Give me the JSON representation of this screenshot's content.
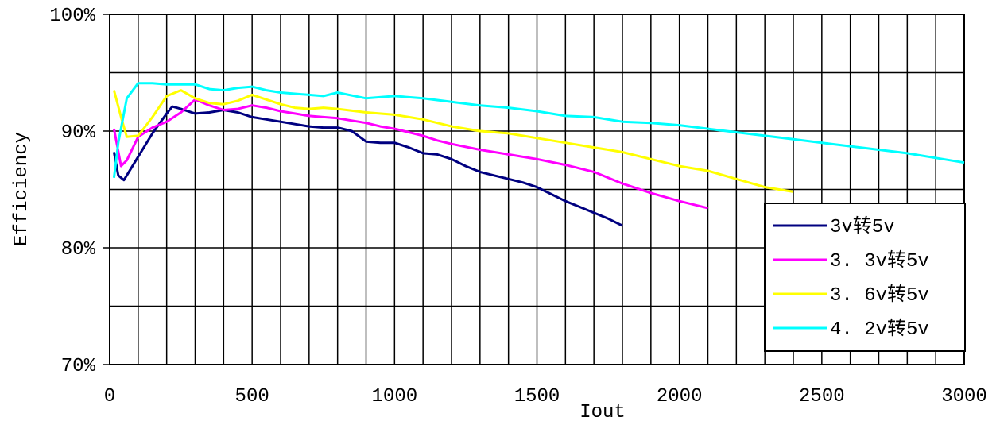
{
  "chart_data": {
    "type": "line",
    "title": "",
    "xlabel": "Iout",
    "ylabel": "Efficiency",
    "xlim": [
      0,
      3000
    ],
    "ylim": [
      70,
      100
    ],
    "x_ticks": [
      0,
      500,
      1000,
      1500,
      2000,
      2500,
      3000
    ],
    "y_ticks": [
      70,
      80,
      90,
      100
    ],
    "y_tick_labels": [
      "70%",
      "80%",
      "90%",
      "100%"
    ],
    "grid": true,
    "legend_position": "bottom-right",
    "series": [
      {
        "name": "3v转5v",
        "color": "#000080",
        "x": [
          15,
          30,
          50,
          100,
          150,
          200,
          220,
          250,
          300,
          350,
          400,
          450,
          500,
          550,
          600,
          650,
          700,
          750,
          800,
          850,
          900,
          950,
          1000,
          1050,
          1100,
          1150,
          1200,
          1250,
          1300,
          1350,
          1400,
          1450,
          1500,
          1550,
          1600,
          1650,
          1700,
          1750,
          1800
        ],
        "y": [
          88.2,
          86.2,
          85.8,
          87.8,
          89.8,
          91.5,
          92.1,
          91.9,
          91.5,
          91.6,
          91.8,
          91.6,
          91.2,
          91.0,
          90.8,
          90.6,
          90.4,
          90.3,
          90.3,
          90.0,
          89.1,
          89.0,
          89.0,
          88.6,
          88.1,
          88.0,
          87.6,
          87.0,
          86.5,
          86.2,
          85.9,
          85.6,
          85.2,
          84.6,
          84.0,
          83.5,
          83.0,
          82.5,
          81.9
        ]
      },
      {
        "name": "3. 3v转5v",
        "color": "#ff00ff",
        "x": [
          15,
          40,
          60,
          100,
          150,
          200,
          250,
          300,
          350,
          400,
          450,
          500,
          550,
          600,
          650,
          700,
          750,
          800,
          850,
          900,
          950,
          1000,
          1050,
          1100,
          1150,
          1200,
          1300,
          1400,
          1500,
          1600,
          1700,
          1800,
          1900,
          2000,
          2100
        ],
        "y": [
          90.2,
          87.0,
          87.5,
          89.5,
          90.3,
          90.8,
          91.6,
          92.7,
          92.2,
          91.8,
          91.9,
          92.2,
          92.0,
          91.7,
          91.5,
          91.3,
          91.2,
          91.1,
          90.9,
          90.7,
          90.4,
          90.2,
          89.9,
          89.6,
          89.2,
          88.9,
          88.4,
          88.0,
          87.6,
          87.1,
          86.5,
          85.5,
          84.7,
          84.0,
          83.4
        ]
      },
      {
        "name": "3. 6v转5v",
        "color": "#ffff00",
        "x": [
          15,
          40,
          60,
          100,
          150,
          200,
          250,
          300,
          350,
          400,
          450,
          500,
          550,
          600,
          650,
          700,
          750,
          800,
          900,
          1000,
          1100,
          1200,
          1300,
          1400,
          1500,
          1600,
          1700,
          1800,
          1900,
          2000,
          2100,
          2200,
          2300,
          2400
        ],
        "y": [
          93.5,
          91.2,
          89.5,
          89.6,
          91.2,
          93.0,
          93.5,
          92.8,
          92.4,
          92.3,
          92.6,
          93.1,
          92.7,
          92.3,
          92.0,
          91.9,
          92.0,
          91.9,
          91.6,
          91.4,
          91.0,
          90.4,
          90.0,
          89.8,
          89.4,
          89.0,
          88.6,
          88.2,
          87.6,
          87.0,
          86.6,
          85.9,
          85.2,
          84.8
        ]
      },
      {
        "name": "4. 2v转5v",
        "color": "#00ffff",
        "x": [
          15,
          30,
          60,
          100,
          150,
          200,
          250,
          300,
          350,
          400,
          450,
          500,
          550,
          600,
          650,
          700,
          750,
          800,
          900,
          1000,
          1100,
          1200,
          1300,
          1400,
          1500,
          1600,
          1700,
          1800,
          1900,
          2000,
          2100,
          2200,
          2300,
          2400,
          2500,
          2600,
          2700,
          2800,
          2900,
          3000
        ],
        "y": [
          86.0,
          89.0,
          92.8,
          94.1,
          94.1,
          94.0,
          94.0,
          94.0,
          93.6,
          93.5,
          93.7,
          93.8,
          93.5,
          93.3,
          93.2,
          93.1,
          93.0,
          93.3,
          92.8,
          93.0,
          92.8,
          92.5,
          92.2,
          92.0,
          91.7,
          91.3,
          91.2,
          90.8,
          90.7,
          90.5,
          90.2,
          89.9,
          89.6,
          89.3,
          89.0,
          88.7,
          88.4,
          88.1,
          87.7,
          87.3
        ]
      }
    ]
  }
}
